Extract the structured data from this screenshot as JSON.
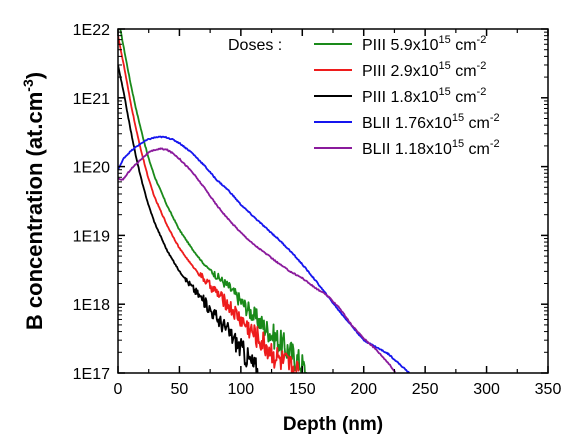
{
  "chart_data": {
    "type": "line",
    "xlabel": "Depth (nm)",
    "ylabel": "B concentration (at.cm",
    "ylabel_sup": "-3",
    "ylabel_close": ")",
    "xlim": [
      0,
      350
    ],
    "ylim": [
      1e+17,
      1e+22
    ],
    "y_scale": "log",
    "x_ticks": [
      0,
      50,
      100,
      150,
      200,
      250,
      300,
      350
    ],
    "x_tick_labels": [
      "0",
      "50",
      "100",
      "150",
      "200",
      "250",
      "300",
      "350"
    ],
    "y_ticks": [
      1e+17,
      1e+18,
      1e+19,
      1e+20,
      1e+21,
      1e+22
    ],
    "y_tick_labels": [
      "1E17",
      "1E18",
      "1E19",
      "1E20",
      "1E21",
      "1E22"
    ],
    "grid": false,
    "legend_title": "Doses :",
    "legend_position": "top-right",
    "series": [
      {
        "name_main": "PIII 5.9x10",
        "name_sup": "15",
        "name_unit": " cm",
        "name_unit_sup": "-2",
        "color": "#1a8a1a",
        "noisy_from": 75,
        "x": [
          0,
          5,
          10,
          15,
          20,
          25,
          30,
          40,
          50,
          60,
          70,
          80,
          90,
          100,
          110,
          120,
          130,
          140,
          150,
          153
        ],
        "y": [
          1.5e+22,
          5e+21,
          1.7e+21,
          6.5e+20,
          2.8e+20,
          1.3e+20,
          7e+19,
          2.7e+19,
          1.2e+19,
          6.5e+18,
          3.8e+18,
          2.6e+18,
          1.8e+18,
          1.1e+18,
          7e+17,
          4.5e+17,
          3e+17,
          2e+17,
          1.3e+17,
          1e+17
        ]
      },
      {
        "name_main": "PIII 2.9x10",
        "name_sup": "15",
        "name_unit": " cm",
        "name_unit_sup": "-2",
        "color": "#ee1c1c",
        "noisy_from": 65,
        "x": [
          0,
          5,
          10,
          15,
          20,
          25,
          30,
          40,
          50,
          60,
          70,
          80,
          90,
          100,
          110,
          120,
          130,
          140,
          147
        ],
        "y": [
          8e+21,
          2.8e+21,
          9e+20,
          3.3e+20,
          1.4e+20,
          6.5e+19,
          3.5e+19,
          1.4e+19,
          6.5e+18,
          3.7e+18,
          2.3e+18,
          1.5e+18,
          9.5e+17,
          6e+17,
          3.8e+17,
          2.5e+17,
          1.6e+17,
          1.2e+17,
          1e+17
        ]
      },
      {
        "name_main": "PIII 1.8x10",
        "name_sup": "15",
        "name_unit": " cm",
        "name_unit_sup": "-2",
        "color": "#000000",
        "noisy_from": 55,
        "x": [
          0,
          5,
          10,
          15,
          20,
          25,
          30,
          40,
          50,
          60,
          70,
          80,
          90,
          100,
          110,
          115
        ],
        "y": [
          3e+21,
          1.1e+21,
          3.6e+20,
          1.3e+20,
          5.5e+19,
          2.7e+19,
          1.5e+19,
          6e+18,
          3e+18,
          1.8e+18,
          1.1e+18,
          6.5e+17,
          4e+17,
          2.3e+17,
          1.3e+17,
          1e+17
        ]
      },
      {
        "name_main": "BLII 1.76x10",
        "name_sup": "15",
        "name_unit": " cm",
        "name_unit_sup": "-2",
        "color": "#1515ee",
        "noisy_from": 999,
        "x": [
          0,
          5,
          10,
          15,
          20,
          25,
          30,
          35,
          40,
          45,
          50,
          60,
          70,
          80,
          90,
          100,
          110,
          120,
          130,
          140,
          150,
          160,
          180,
          200,
          220,
          237
        ],
        "y": [
          9e+19,
          1.35e+20,
          1.65e+20,
          1.95e+20,
          2.25e+20,
          2.5e+20,
          2.65e+20,
          2.7e+20,
          2.65e+20,
          2.45e+20,
          2.2e+20,
          1.6e+20,
          1.05e+20,
          6.5e+19,
          4.5e+19,
          2.8e+19,
          1.9e+19,
          1.3e+19,
          9e+18,
          6e+18,
          3.8e+18,
          2.3e+18,
          8e+17,
          3e+17,
          1.9e+17,
          1e+17
        ]
      },
      {
        "name_main": "BLII 1.18x10",
        "name_sup": "15",
        "name_unit": " cm",
        "name_unit_sup": "-2",
        "color": "#8a1a9c",
        "noisy_from": 999,
        "x": [
          0,
          3,
          5,
          8,
          10,
          15,
          20,
          25,
          30,
          35,
          40,
          45,
          50,
          60,
          70,
          80,
          90,
          100,
          110,
          120,
          130,
          140,
          150,
          160,
          170,
          180,
          190,
          200,
          210,
          220,
          226
        ],
        "y": [
          6.8e+19,
          6.3e+19,
          6.8e+19,
          8e+19,
          9e+19,
          1.1e+20,
          1.35e+20,
          1.6e+20,
          1.75e+20,
          1.82e+20,
          1.75e+20,
          1.55e+20,
          1.3e+20,
          8.5e+19,
          5e+19,
          2.8e+19,
          1.7e+19,
          1.1e+19,
          7.5e+18,
          5.5e+18,
          4e+18,
          3e+18,
          2.4e+18,
          1.75e+18,
          1.35e+18,
          9e+17,
          5e+17,
          3.2e+17,
          2.2e+17,
          1.4e+17,
          1e+17
        ]
      }
    ]
  }
}
